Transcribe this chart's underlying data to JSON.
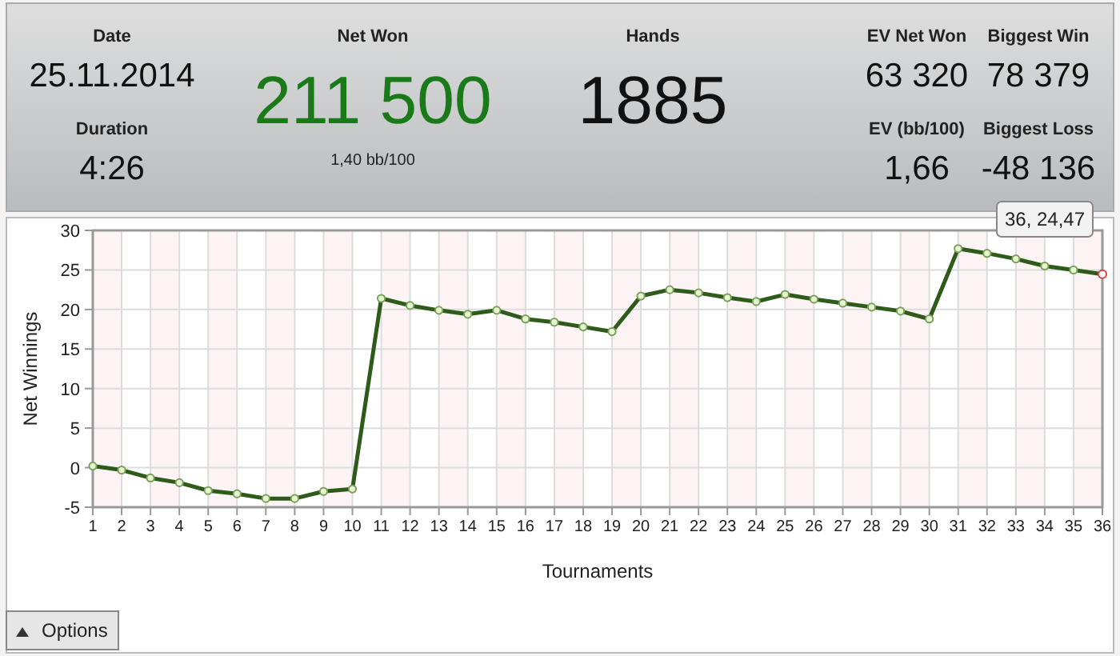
{
  "chart_data": [
    {
      "type": "other",
      "annotations": [
        "Date",
        "25.11.2014",
        "Duration",
        "4:26",
        "Net Won",
        "211 500",
        "1,40 bb/100",
        "Hands",
        "1885",
        "EV Net Won",
        "63 320",
        "Biggest Win",
        "78 379",
        "EV (bb/100)",
        "1,66",
        "Biggest Loss",
        "-48 136"
      ]
    },
    {
      "type": "line",
      "xlabel": "Tournaments",
      "ylabel": "Net Winnings",
      "x": [
        1,
        2,
        3,
        4,
        5,
        6,
        7,
        8,
        9,
        10,
        11,
        12,
        13,
        14,
        15,
        16,
        17,
        18,
        19,
        20,
        21,
        22,
        23,
        24,
        25,
        26,
        27,
        28,
        29,
        30,
        31,
        32,
        33,
        34,
        35,
        36
      ],
      "series": [
        {
          "color": "#2e5a1a",
          "values": [
            0.2,
            -0.3,
            -1.3,
            -1.9,
            -2.9,
            -3.3,
            -3.9,
            -3.9,
            -3.0,
            -2.7,
            21.4,
            20.5,
            19.9,
            19.4,
            19.9,
            18.8,
            18.4,
            17.8,
            17.2,
            21.7,
            22.5,
            22.1,
            21.5,
            21.0,
            21.9,
            21.3,
            20.8,
            20.3,
            19.8,
            18.8,
            27.7,
            27.1,
            26.4,
            25.5,
            25.0,
            24.47
          ]
        }
      ],
      "xlim": [
        1,
        36
      ],
      "xticks": [
        1,
        2,
        3,
        4,
        5,
        6,
        7,
        8,
        9,
        10,
        11,
        12,
        13,
        14,
        15,
        16,
        17,
        18,
        19,
        20,
        21,
        22,
        23,
        24,
        25,
        26,
        27,
        28,
        29,
        30,
        31,
        32,
        33,
        34,
        35,
        36
      ],
      "ylim": [
        -5,
        30
      ],
      "yticks": [
        -5,
        0,
        5,
        10,
        15,
        20,
        25,
        30
      ],
      "grid": true,
      "marker": "circle",
      "line_style": "solid",
      "annotations": [
        {
          "text": "36, 24,47",
          "x": 36,
          "y": 24.47
        },
        "Options"
      ]
    }
  ]
}
